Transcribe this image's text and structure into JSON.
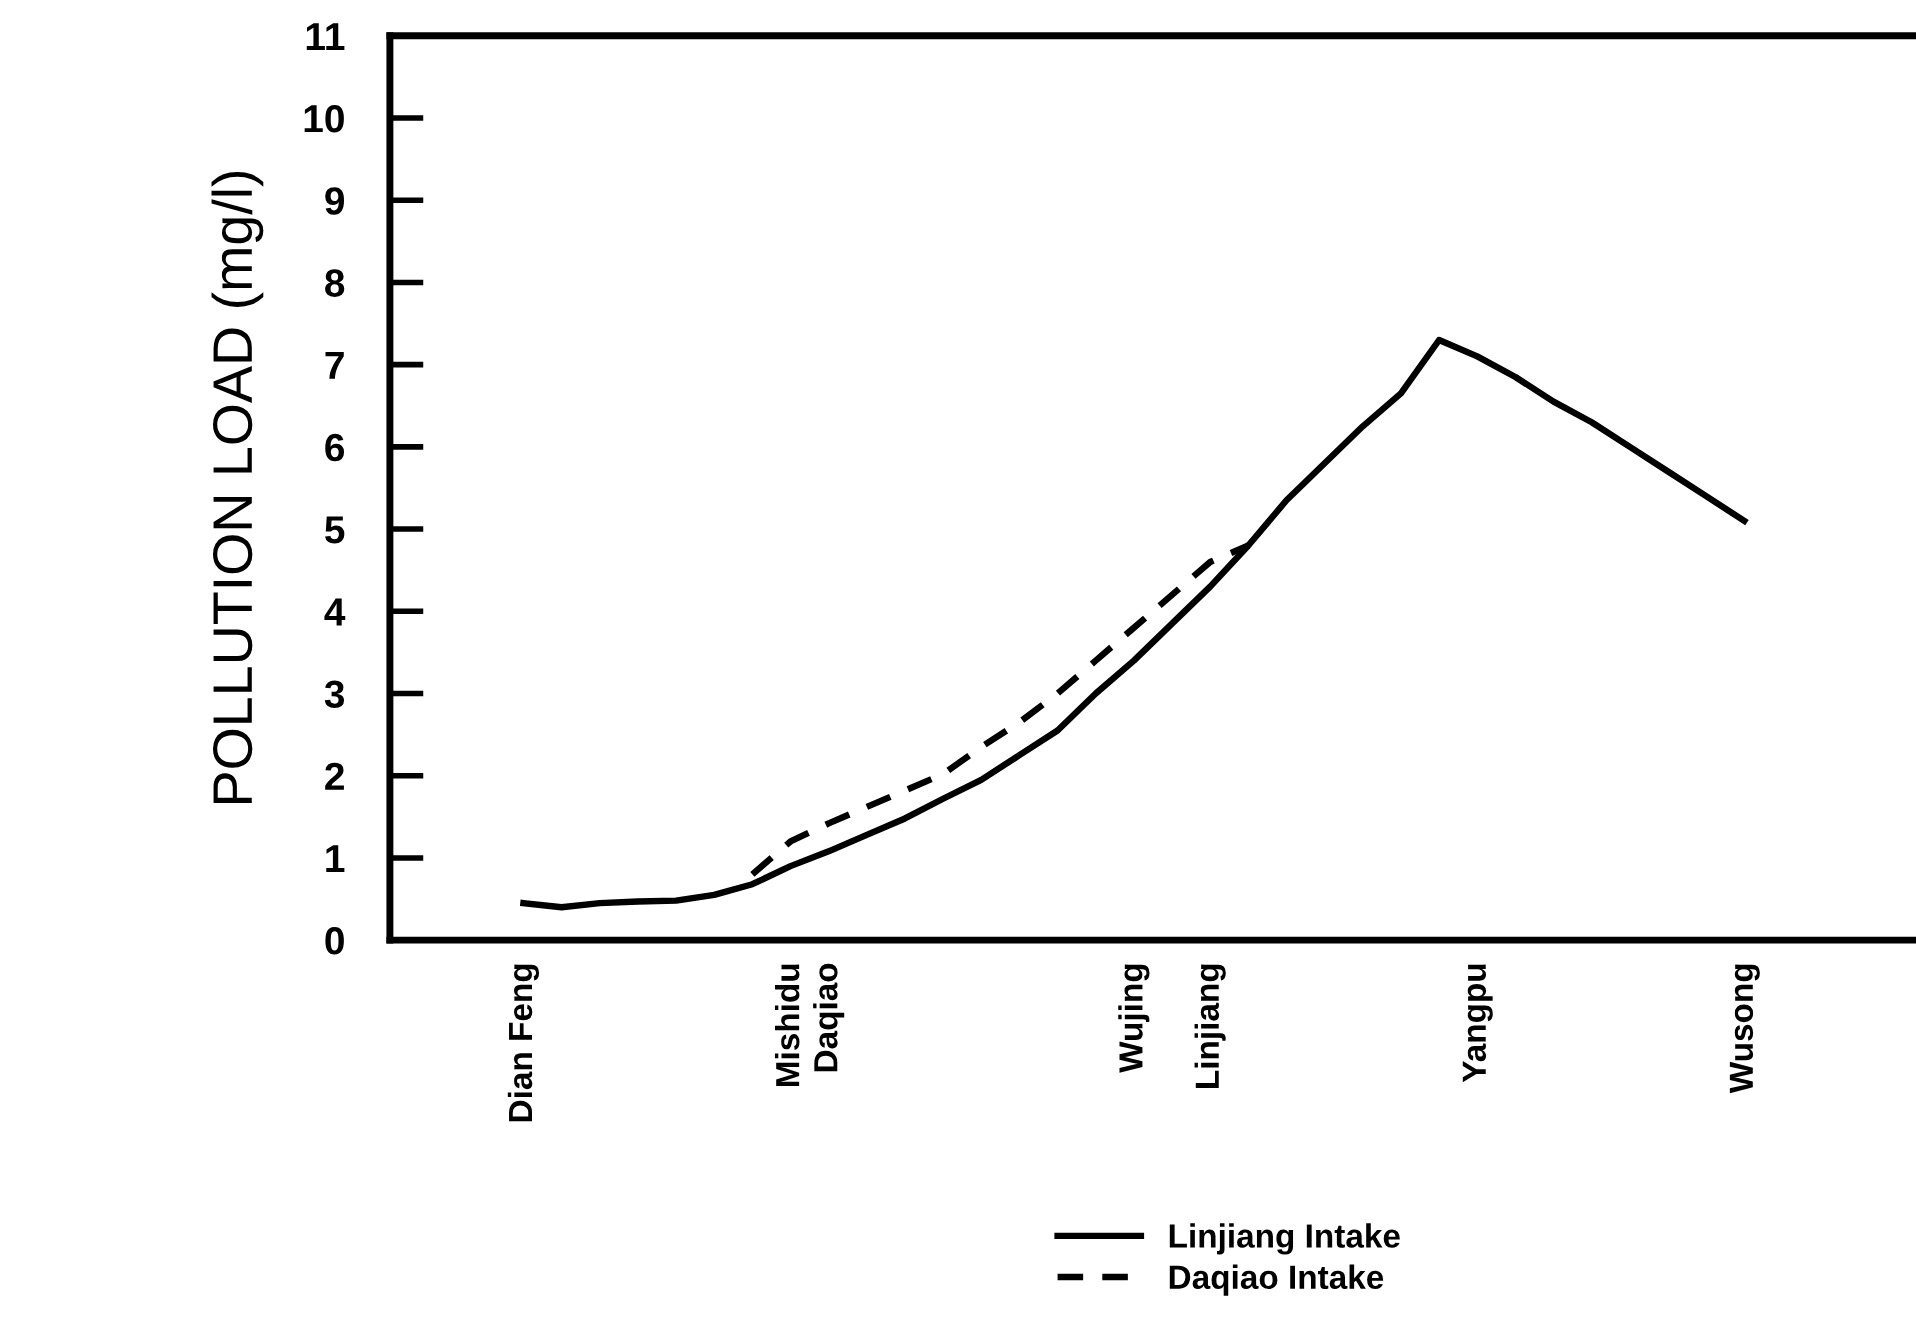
{
  "chart_data": {
    "type": "line",
    "ylabel": "POLLUTION LOAD (mg/l)",
    "categories": [
      null,
      null,
      null,
      "Dian Feng",
      null,
      null,
      null,
      null,
      null,
      null,
      "Mishidu",
      "Daqiao",
      null,
      null,
      null,
      null,
      null,
      null,
      null,
      "Wujing",
      null,
      "Linjiang",
      null,
      null,
      null,
      null,
      null,
      null,
      "Yangpu",
      null,
      null,
      null,
      null,
      null,
      null,
      "Wusong",
      null,
      null,
      null,
      null
    ],
    "ylim": [
      0,
      11
    ],
    "yticks": [
      0,
      1,
      2,
      3,
      4,
      5,
      6,
      7,
      8,
      9,
      10,
      11
    ],
    "grid": false,
    "legend": "bottom",
    "marker": "none",
    "series": [
      {
        "name": "Linjiang Intake",
        "color": "#000000",
        "line_style": "solid",
        "values": [
          null,
          null,
          null,
          0.45,
          0.4,
          0.45,
          0.47,
          0.48,
          0.55,
          0.68,
          0.9,
          1.08,
          1.28,
          1.48,
          1.72,
          1.95,
          2.25,
          2.55,
          3.0,
          3.4,
          3.85,
          4.3,
          4.8,
          5.35,
          5.8,
          6.25,
          6.65,
          7.3,
          7.1,
          6.85,
          6.55,
          6.3,
          6.0,
          5.7,
          5.4,
          5.1,
          null,
          null,
          null,
          null
        ]
      },
      {
        "name": "Daqiao Intake",
        "color": "#000000",
        "line_style": "dashed",
        "values": [
          null,
          null,
          null,
          null,
          null,
          null,
          null,
          null,
          null,
          0.8,
          1.2,
          1.42,
          1.62,
          1.82,
          2.02,
          2.35,
          2.65,
          3.0,
          3.4,
          3.8,
          4.2,
          4.6,
          4.8,
          null,
          null,
          null,
          null,
          null,
          null,
          null,
          null,
          null,
          null,
          null,
          null,
          null,
          null,
          null,
          null,
          null
        ]
      }
    ]
  }
}
